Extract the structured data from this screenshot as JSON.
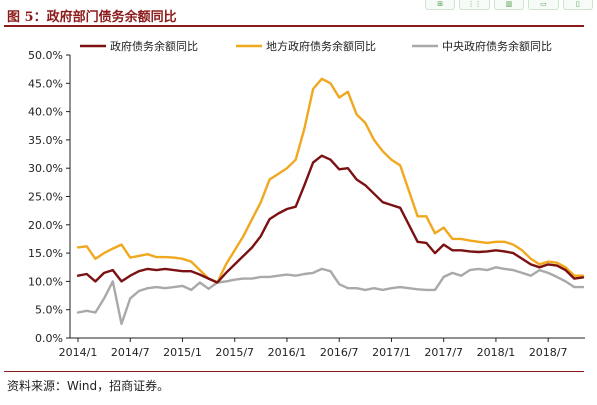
{
  "header": {
    "title": "图 5：政府部门债务余额同比"
  },
  "footer": {
    "source": "资料来源：Wind，招商证券。"
  },
  "toolbar": {
    "icons": [
      "expand-icon",
      "grid-icon",
      "chart-icon",
      "screen-icon",
      "document-icon"
    ]
  },
  "chart_data": {
    "type": "line",
    "x": [
      "2014/1",
      "2014/2",
      "2014/3",
      "2014/4",
      "2014/5",
      "2014/6",
      "2014/7",
      "2014/8",
      "2014/9",
      "2014/10",
      "2014/11",
      "2014/12",
      "2015/1",
      "2015/2",
      "2015/3",
      "2015/4",
      "2015/5",
      "2015/6",
      "2015/7",
      "2015/8",
      "2015/9",
      "2015/10",
      "2015/11",
      "2015/12",
      "2016/1",
      "2016/2",
      "2016/3",
      "2016/4",
      "2016/5",
      "2016/6",
      "2016/7",
      "2016/8",
      "2016/9",
      "2016/10",
      "2016/11",
      "2016/12",
      "2017/1",
      "2017/2",
      "2017/3",
      "2017/4",
      "2017/5",
      "2017/6",
      "2017/7",
      "2017/8",
      "2017/9",
      "2017/10",
      "2017/11",
      "2017/12",
      "2018/1",
      "2018/2",
      "2018/3",
      "2018/4",
      "2018/5",
      "2018/6",
      "2018/7",
      "2018/8",
      "2018/9",
      "2018/10",
      "2018/11"
    ],
    "xticks": [
      "2014/1",
      "2014/7",
      "2015/1",
      "2015/7",
      "2016/1",
      "2016/7",
      "2017/1",
      "2017/7",
      "2018/1",
      "2018/7"
    ],
    "yticks": [
      "0.0%",
      "5.0%",
      "10.0%",
      "15.0%",
      "20.0%",
      "25.0%",
      "30.0%",
      "35.0%",
      "40.0%",
      "45.0%",
      "50.0%"
    ],
    "ylim": [
      0,
      50
    ],
    "legend_position": "top",
    "series": [
      {
        "name": "政府债务余额同比",
        "color": "#7b1113",
        "values": [
          11.0,
          11.3,
          10.0,
          11.5,
          12.0,
          10.0,
          11.0,
          11.8,
          12.2,
          12.0,
          12.2,
          12.0,
          11.8,
          11.8,
          11.2,
          10.5,
          9.8,
          11.5,
          13.0,
          14.5,
          16.0,
          18.0,
          21.0,
          22.0,
          22.8,
          23.2,
          27.0,
          31.0,
          32.2,
          31.5,
          29.8,
          30.0,
          28.0,
          27.0,
          25.5,
          24.0,
          23.5,
          23.0,
          20.0,
          17.0,
          16.8,
          15.0,
          16.5,
          15.5,
          15.5,
          15.3,
          15.2,
          15.3,
          15.5,
          15.3,
          15.0,
          14.0,
          13.0,
          12.5,
          13.0,
          12.8,
          12.0,
          10.5,
          10.7
        ]
      },
      {
        "name": "地方政府债务余额同比",
        "color": "#f0a81e",
        "values": [
          16.0,
          16.2,
          14.0,
          15.0,
          15.8,
          16.5,
          14.2,
          14.5,
          14.8,
          14.3,
          14.3,
          14.2,
          14.0,
          13.5,
          12.0,
          10.5,
          9.8,
          13.0,
          15.5,
          18.0,
          21.0,
          24.0,
          28.0,
          29.0,
          30.0,
          31.5,
          37.0,
          44.0,
          45.8,
          45.0,
          42.5,
          43.5,
          39.5,
          38.0,
          35.0,
          33.0,
          31.5,
          30.5,
          26.0,
          21.5,
          21.5,
          18.5,
          19.5,
          17.5,
          17.5,
          17.2,
          17.0,
          16.8,
          17.0,
          17.0,
          16.5,
          15.5,
          14.0,
          13.0,
          13.5,
          13.3,
          12.5,
          11.0,
          11.0
        ]
      },
      {
        "name": "中央政府债务余额同比",
        "color": "#a9a9a9",
        "values": [
          4.5,
          4.8,
          4.5,
          7.0,
          10.0,
          2.5,
          7.0,
          8.3,
          8.8,
          9.0,
          8.8,
          9.0,
          9.2,
          8.5,
          9.8,
          8.7,
          9.8,
          10.0,
          10.3,
          10.5,
          10.5,
          10.8,
          10.8,
          11.0,
          11.2,
          11.0,
          11.3,
          11.5,
          12.2,
          11.8,
          9.5,
          8.8,
          8.8,
          8.5,
          8.8,
          8.5,
          8.8,
          9.0,
          8.8,
          8.6,
          8.5,
          8.5,
          10.8,
          11.5,
          11.0,
          12.0,
          12.2,
          12.0,
          12.5,
          12.2,
          12.0,
          11.5,
          11.0,
          12.0,
          11.5,
          10.8,
          10.0,
          9.0,
          9.0
        ]
      }
    ]
  }
}
